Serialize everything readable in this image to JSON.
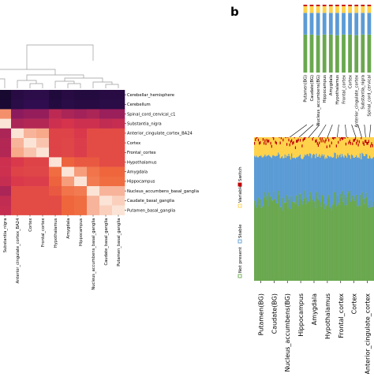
{
  "panel_b_label": "b",
  "chart_data": [
    {
      "type": "heatmap",
      "title": "",
      "colorscale": [
        "#08061c",
        "#3b0f5c",
        "#8e1b5e",
        "#d6334d",
        "#f0683c",
        "#f6a282",
        "#fbe4d6"
      ],
      "rows": [
        "Cerebellar_hemisphere",
        "Cerebellum",
        "Spinal_cord_cervical_c1",
        "Substantia_nigra",
        "Anterior_cingulate_cortex_BA24",
        "Cortex",
        "Frontal_cortex",
        "Hypothalamus",
        "Amygdala",
        "Hippocampus",
        "Nucleus_accumbens_basal_ganglia",
        "Caudate_basal_ganglia",
        "Putamen_basal_ganglia"
      ],
      "columns": [
        "Spinal_cord_cervical_c1",
        "Substantia_nigra",
        "Anterior_cingulate_cortex_BA24",
        "Cortex",
        "Frontal_cortex",
        "Hypothalamus",
        "Amygdala",
        "Hippocampus",
        "Nucleus_accumbens_basal_ganglia",
        "Caudate_basal_ganglia",
        "Putamen_basal_ganglia"
      ],
      "dendrogram": "hierarchical clustering tree above columns",
      "values": [
        [
          0.02,
          0.05,
          0.1,
          0.12,
          0.12,
          0.08,
          0.1,
          0.09,
          0.09,
          0.1,
          0.1
        ],
        [
          0.03,
          0.06,
          0.11,
          0.13,
          0.13,
          0.09,
          0.11,
          0.1,
          0.1,
          0.11,
          0.11
        ],
        [
          1.0,
          0.78,
          0.33,
          0.35,
          0.35,
          0.44,
          0.4,
          0.38,
          0.4,
          0.36,
          0.36
        ],
        [
          0.78,
          1.0,
          0.4,
          0.42,
          0.42,
          0.48,
          0.5,
          0.48,
          0.48,
          0.45,
          0.46
        ],
        [
          0.3,
          0.4,
          1.0,
          0.88,
          0.85,
          0.55,
          0.55,
          0.52,
          0.58,
          0.58,
          0.58
        ],
        [
          0.32,
          0.42,
          0.88,
          1.0,
          0.92,
          0.55,
          0.56,
          0.53,
          0.58,
          0.58,
          0.58
        ],
        [
          0.32,
          0.42,
          0.85,
          0.92,
          1.0,
          0.55,
          0.56,
          0.53,
          0.58,
          0.58,
          0.58
        ],
        [
          0.42,
          0.48,
          0.52,
          0.55,
          0.55,
          1.0,
          0.65,
          0.62,
          0.62,
          0.58,
          0.58
        ],
        [
          0.4,
          0.48,
          0.55,
          0.56,
          0.56,
          0.68,
          1.0,
          0.82,
          0.7,
          0.66,
          0.66
        ],
        [
          0.38,
          0.46,
          0.52,
          0.53,
          0.53,
          0.65,
          0.82,
          1.0,
          0.72,
          0.68,
          0.68
        ],
        [
          0.28,
          0.4,
          0.58,
          0.58,
          0.58,
          0.62,
          0.7,
          0.72,
          1.0,
          0.88,
          0.88
        ],
        [
          0.36,
          0.45,
          0.58,
          0.58,
          0.58,
          0.58,
          0.66,
          0.68,
          0.88,
          1.0,
          0.95
        ],
        [
          0.36,
          0.46,
          0.58,
          0.58,
          0.58,
          0.58,
          0.66,
          0.68,
          0.88,
          0.95,
          1.0
        ]
      ]
    },
    {
      "type": "bar",
      "stacked": true,
      "title": "",
      "legend": [
        {
          "name": "Not present",
          "color": "#6aa84f"
        },
        {
          "name": "Stable",
          "color": "#5b9bd5"
        },
        {
          "name": "Variable",
          "color": "#ffd24a"
        },
        {
          "name": "Switch",
          "color": "#c00000"
        }
      ],
      "inset_categories": [
        "Putamen(BG)",
        "Caudate(BG)",
        "Nucleus_accumbens(BG)",
        "Hippocampus",
        "Amygdala",
        "Hypothalamus",
        "Frontal_cortex",
        "Cortex",
        "Anterior_cingulate_cortex",
        "Substantia_nigra",
        "Spinal_cord_cervical"
      ],
      "inset_series": [
        {
          "name": "Not present",
          "values": [
            0.56,
            0.56,
            0.55,
            0.56,
            0.56,
            0.55,
            0.56,
            0.56,
            0.55,
            0.56,
            0.56
          ]
        },
        {
          "name": "Stable",
          "values": [
            0.32,
            0.32,
            0.33,
            0.32,
            0.32,
            0.33,
            0.32,
            0.32,
            0.33,
            0.32,
            0.32
          ]
        },
        {
          "name": "Variable",
          "values": [
            0.1,
            0.1,
            0.1,
            0.1,
            0.1,
            0.1,
            0.1,
            0.1,
            0.1,
            0.1,
            0.1
          ]
        },
        {
          "name": "Switch",
          "values": [
            0.02,
            0.02,
            0.02,
            0.02,
            0.02,
            0.02,
            0.02,
            0.02,
            0.02,
            0.02,
            0.02
          ]
        }
      ],
      "main_categories": [
        "Putamen(BG)",
        "Caudate(BG)",
        "Nucleus_accumbens(BG)",
        "Hippocampus",
        "Amygdala",
        "Hypothalamus",
        "Frontal_cortex",
        "Cortex",
        "Anterior_cingulate_cortex"
      ],
      "main_series": [
        {
          "name": "Not present",
          "values": [
            0.56,
            0.57,
            0.55,
            0.58,
            0.56,
            0.55,
            0.57,
            0.58,
            0.56
          ]
        },
        {
          "name": "Stable",
          "values": [
            0.31,
            0.3,
            0.32,
            0.29,
            0.31,
            0.32,
            0.3,
            0.29,
            0.31
          ]
        },
        {
          "name": "Variable",
          "values": [
            0.11,
            0.11,
            0.11,
            0.11,
            0.11,
            0.11,
            0.11,
            0.11,
            0.11
          ]
        },
        {
          "name": "Switch",
          "values": [
            0.02,
            0.02,
            0.02,
            0.02,
            0.02,
            0.02,
            0.02,
            0.02,
            0.02
          ]
        }
      ]
    }
  ]
}
